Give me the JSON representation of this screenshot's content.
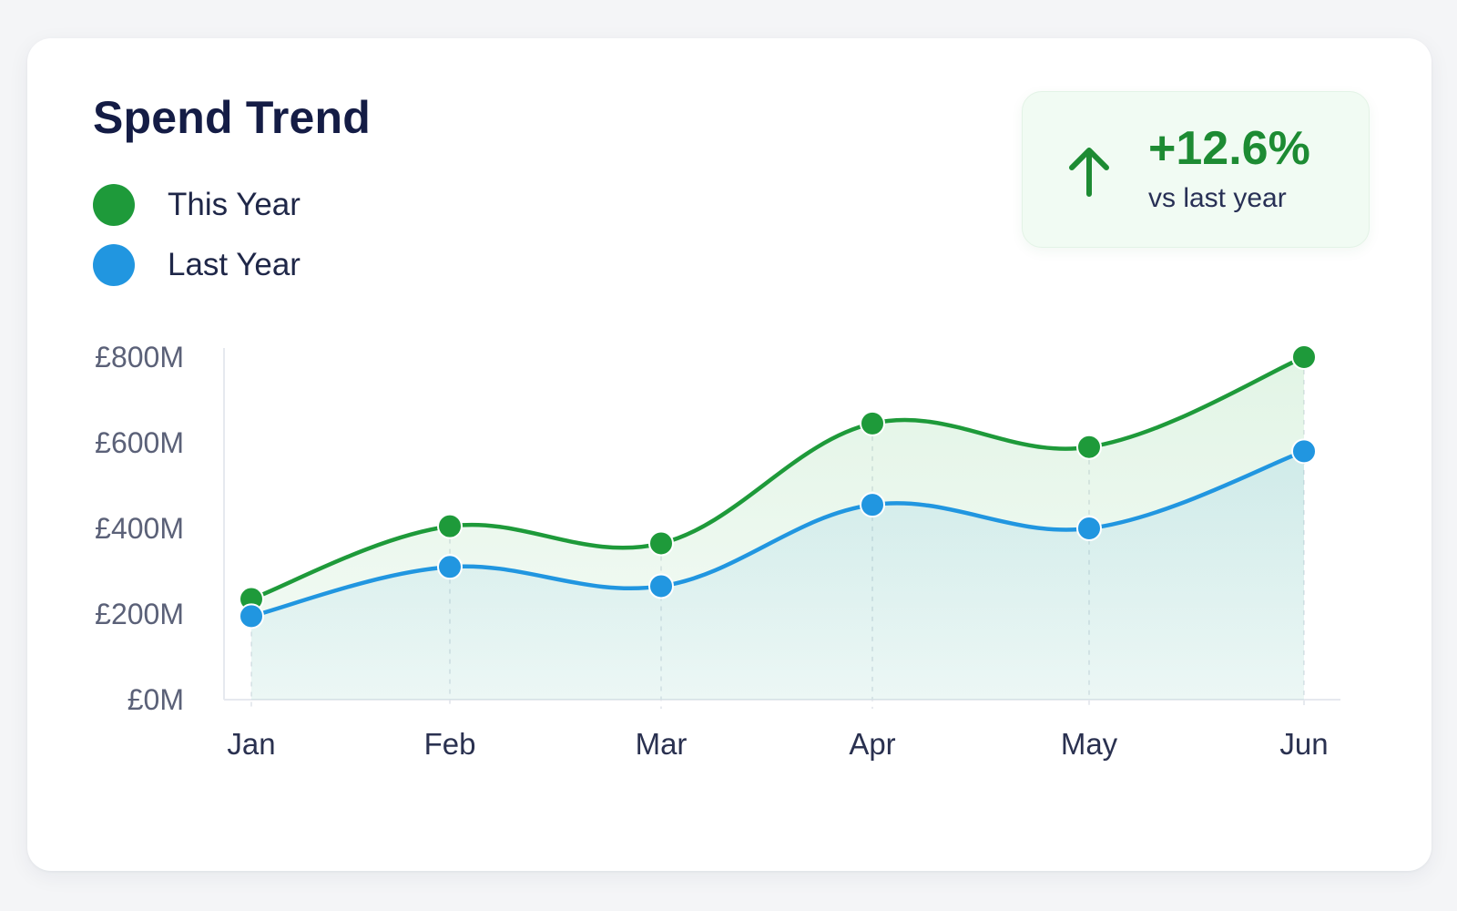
{
  "card": {
    "title": "Spend Trend"
  },
  "legend": [
    {
      "label": "This Year",
      "color": "#1e9a3a"
    },
    {
      "label": "Last Year",
      "color": "#2196e0"
    }
  ],
  "kpi": {
    "value": "+12.6%",
    "caption": "vs last year",
    "icon": "arrow-up-icon",
    "color": "#1d8b33"
  },
  "chart_data": {
    "type": "line",
    "title": "Spend Trend",
    "categories": [
      "Jan",
      "Feb",
      "Mar",
      "Apr",
      "May",
      "Jun"
    ],
    "series": [
      {
        "name": "This Year",
        "color": "#1e9a3a",
        "values": [
          235,
          405,
          365,
          645,
          590,
          800
        ]
      },
      {
        "name": "Last Year",
        "color": "#2196e0",
        "values": [
          195,
          310,
          265,
          455,
          400,
          580
        ]
      }
    ],
    "yticks": [
      0,
      200,
      400,
      600,
      800
    ],
    "ytick_labels": [
      "£0M",
      "£200M",
      "£400M",
      "£600M",
      "£800M"
    ],
    "ylim": [
      0,
      800
    ],
    "xlabel": "",
    "ylabel": "",
    "grid": false,
    "legend_position": "top-left"
  }
}
